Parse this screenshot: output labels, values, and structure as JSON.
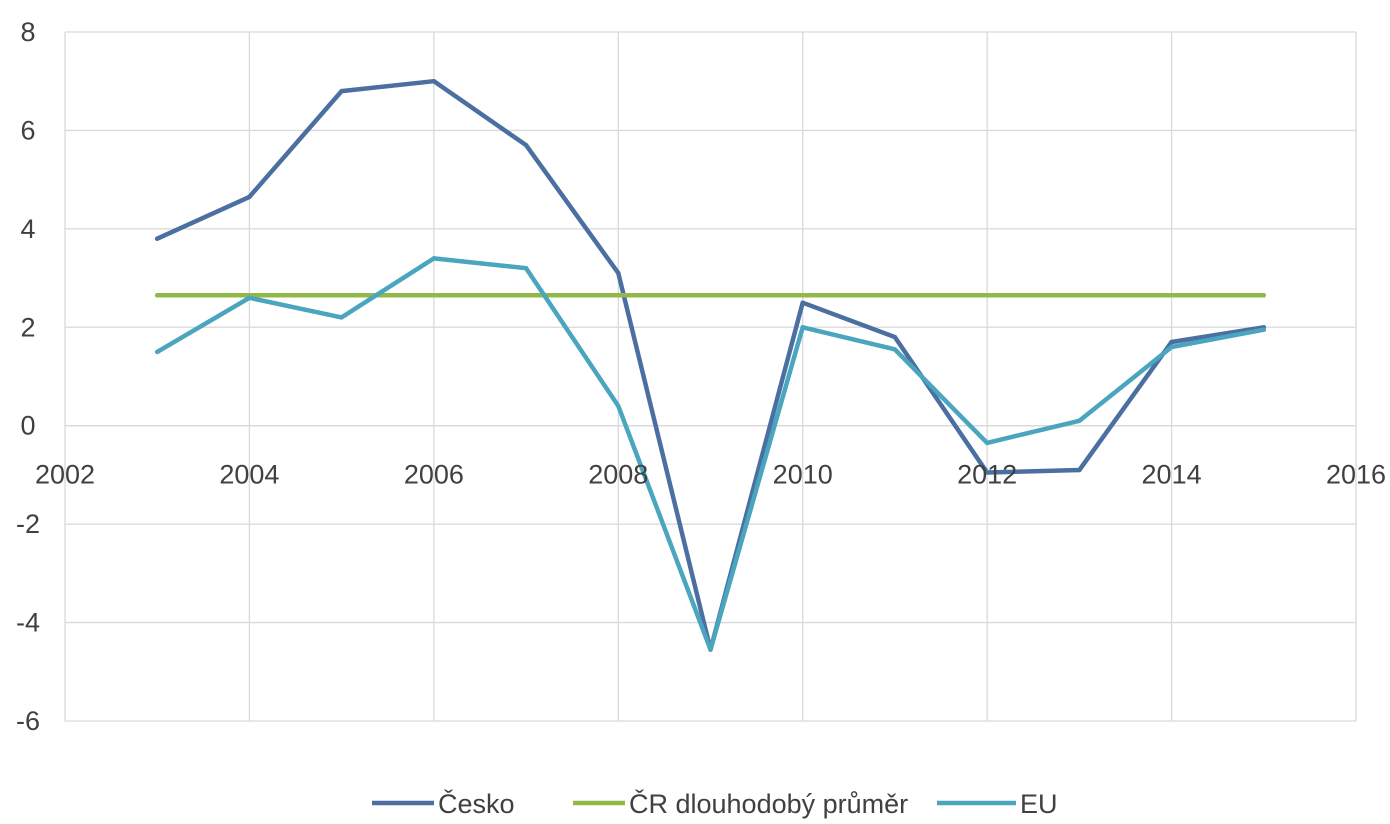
{
  "chart_data": {
    "type": "line",
    "title": "",
    "xlabel": "",
    "ylabel": "",
    "xlim": [
      2002,
      2016
    ],
    "ylim": [
      -6,
      8
    ],
    "x_ticks": [
      "2002",
      "2004",
      "2006",
      "2008",
      "2010",
      "2012",
      "2014",
      "2016"
    ],
    "y_ticks": [
      "8",
      "6",
      "4",
      "2",
      "0",
      "-2",
      "-4",
      "-6"
    ],
    "x": [
      2003,
      2004,
      2005,
      2006,
      2007,
      2008,
      2009,
      2010,
      2011,
      2012,
      2013,
      2014,
      2015
    ],
    "series": [
      {
        "name": "Česko",
        "color": "#4a6fa0",
        "values": [
          3.8,
          4.65,
          6.8,
          7.0,
          5.7,
          3.1,
          -4.55,
          2.5,
          1.8,
          -0.95,
          -0.9,
          1.7,
          2.0
        ]
      },
      {
        "name": "ČR dlouhodobý průměr",
        "color": "#92b84a",
        "values": [
          2.65,
          2.65,
          2.65,
          2.65,
          2.65,
          2.65,
          2.65,
          2.65,
          2.65,
          2.65,
          2.65,
          2.65,
          2.65
        ]
      },
      {
        "name": "EU",
        "color": "#4aa5be",
        "values": [
          1.5,
          2.6,
          2.2,
          3.4,
          3.2,
          0.4,
          -4.55,
          2.0,
          1.55,
          -0.35,
          0.1,
          1.6,
          1.95
        ]
      }
    ],
    "grid": true,
    "legend_position": "bottom"
  }
}
